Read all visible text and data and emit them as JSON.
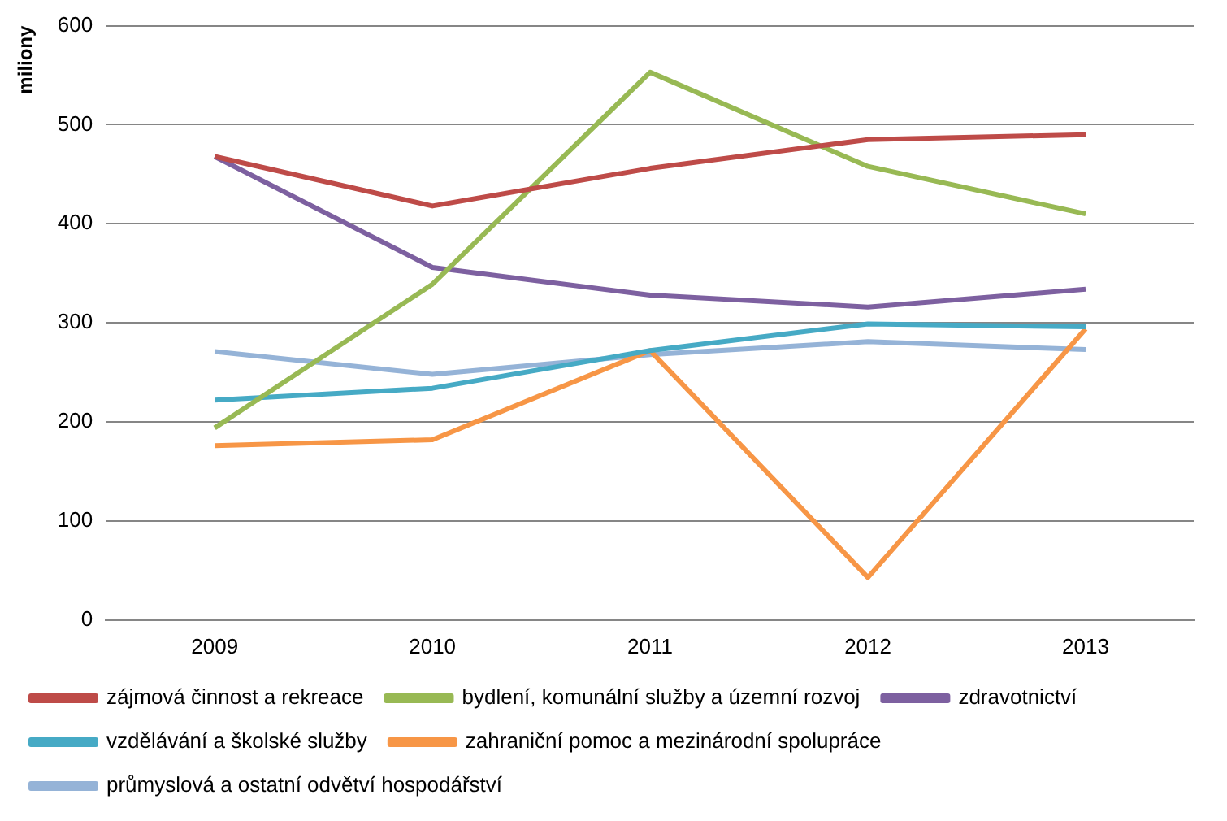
{
  "chart_data": {
    "type": "line",
    "ylabel": "miliony",
    "categories": [
      "2009",
      "2010",
      "2011",
      "2012",
      "2013"
    ],
    "series": [
      {
        "name": "zájmová činnost a rekreace",
        "color": "#be4b48",
        "values": [
          468,
          418,
          456,
          485,
          490
        ]
      },
      {
        "name": "bydlení, komunální služby a územní rozvoj",
        "color": "#98b954",
        "values": [
          194,
          339,
          553,
          458,
          410
        ]
      },
      {
        "name": "zdravotnictví",
        "color": "#7d60a0",
        "values": [
          468,
          356,
          328,
          316,
          334
        ]
      },
      {
        "name": "vzdělávání a školské služby",
        "color": "#46aac5",
        "values": [
          222,
          234,
          272,
          299,
          296
        ]
      },
      {
        "name": "zahraniční pomoc a mezinárodní spolupráce",
        "color": "#f79646",
        "values": [
          176,
          182,
          272,
          43,
          294
        ]
      },
      {
        "name": "průmyslová a ostatní odvětví hospodářství",
        "color": "#95b3d7",
        "values": [
          271,
          248,
          268,
          281,
          273
        ]
      }
    ],
    "ylim": [
      0,
      600
    ],
    "yticks": [
      0,
      100,
      200,
      300,
      400,
      500,
      600
    ],
    "grid": "y",
    "legend": "bottom",
    "marker": "none",
    "line_style": "solid"
  }
}
